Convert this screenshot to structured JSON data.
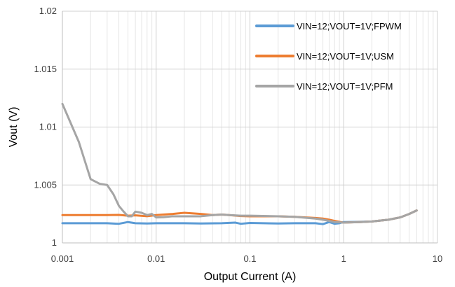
{
  "chart_data": {
    "type": "line",
    "title": "",
    "xlabel": "Output Current (A)",
    "ylabel": "Vout (V)",
    "xscale": "log",
    "xlim": [
      0.001,
      10
    ],
    "ylim": [
      1,
      1.02
    ],
    "xticks": [
      0.001,
      0.01,
      0.1,
      1,
      10
    ],
    "xtick_labels": [
      "0.001",
      "0.01",
      "0.1",
      "1",
      "10"
    ],
    "yticks": [
      1,
      1.005,
      1.01,
      1.015,
      1.02
    ],
    "ytick_labels": [
      "1",
      "1.005",
      "1.01",
      "1.015",
      "1.02"
    ],
    "grid": true,
    "legend_position": "top-right",
    "series": [
      {
        "name": "VIN=12;VOUT=1V;FPWM",
        "color": "#5B9BD5",
        "x": [
          0.001,
          0.002,
          0.003,
          0.004,
          0.005,
          0.006,
          0.008,
          0.01,
          0.02,
          0.03,
          0.05,
          0.07,
          0.08,
          0.1,
          0.2,
          0.3,
          0.5,
          0.6,
          0.7,
          0.8,
          0.9,
          1,
          1.5,
          2,
          3,
          4,
          5,
          6
        ],
        "y": [
          1.0017,
          1.0017,
          1.0017,
          1.00165,
          1.0018,
          1.0017,
          1.00168,
          1.0017,
          1.0017,
          1.00168,
          1.0017,
          1.00175,
          1.00165,
          1.00172,
          1.00168,
          1.0017,
          1.0017,
          1.00162,
          1.0018,
          1.00165,
          1.0017,
          1.0018,
          1.00182,
          1.00185,
          1.002,
          1.0022,
          1.0025,
          1.0028
        ]
      },
      {
        "name": "VIN=12;VOUT=1V;USM",
        "color": "#ED7D31",
        "x": [
          0.001,
          0.002,
          0.003,
          0.004,
          0.005,
          0.006,
          0.008,
          0.01,
          0.015,
          0.02,
          0.03,
          0.04,
          0.05,
          0.06,
          0.08,
          0.1,
          0.2,
          0.3,
          0.5,
          0.6,
          0.7,
          0.8,
          1,
          1.5,
          2,
          3,
          4,
          5,
          6
        ],
        "y": [
          1.0024,
          1.0024,
          1.0024,
          1.00242,
          1.00235,
          1.00238,
          1.0023,
          1.0024,
          1.0025,
          1.0026,
          1.0025,
          1.0024,
          1.00245,
          1.0024,
          1.00232,
          1.0023,
          1.0023,
          1.00225,
          1.00215,
          1.0021,
          1.002,
          1.0019,
          1.00175,
          1.0018,
          1.00185,
          1.002,
          1.0022,
          1.0025,
          1.0028
        ]
      },
      {
        "name": "VIN=12;VOUT=1V;PFM",
        "color": "#A5A5A5",
        "x": [
          0.001,
          0.0015,
          0.002,
          0.0025,
          0.003,
          0.0035,
          0.004,
          0.0045,
          0.005,
          0.0055,
          0.006,
          0.007,
          0.008,
          0.009,
          0.01,
          0.012,
          0.015,
          0.02,
          0.03,
          0.04,
          0.05,
          0.06,
          0.08,
          0.1,
          0.2,
          0.3,
          0.5,
          0.6,
          0.7,
          0.8,
          1,
          1.5,
          2,
          3,
          4,
          5,
          6
        ],
        "y": [
          1.012,
          1.0087,
          1.0055,
          1.0051,
          1.005,
          1.0042,
          1.0032,
          1.0027,
          1.0023,
          1.0023,
          1.0027,
          1.0026,
          1.0024,
          1.0025,
          1.0022,
          1.00222,
          1.0023,
          1.0023,
          1.0023,
          1.0024,
          1.00245,
          1.0024,
          1.00235,
          1.00235,
          1.0023,
          1.00225,
          1.0021,
          1.002,
          1.0019,
          1.0018,
          1.00175,
          1.0018,
          1.00185,
          1.002,
          1.0022,
          1.0025,
          1.0028
        ]
      }
    ]
  }
}
